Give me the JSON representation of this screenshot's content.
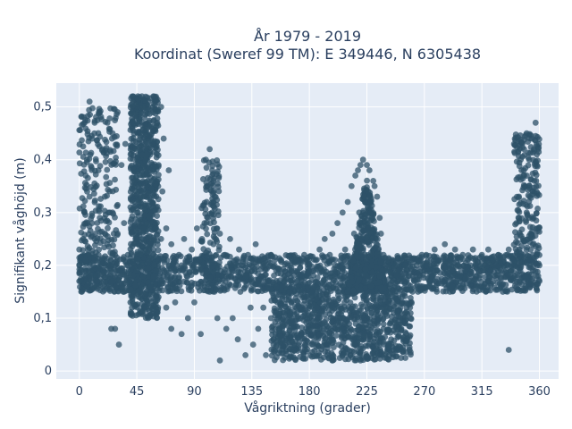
{
  "chart_data": {
    "type": "scatter",
    "title_line1": "År 1979 - 2019",
    "title_line2": "Koordinat (Sweref 99 TM): E 349446, N 6305438",
    "xlabel": "Vågriktning (grader)",
    "ylabel": "Signifikant våghöjd (m)",
    "xlim": [
      -18,
      375
    ],
    "ylim": [
      -0.015,
      0.545
    ],
    "xticks": [
      0,
      45,
      90,
      135,
      180,
      225,
      270,
      315,
      360
    ],
    "xtick_labels": [
      "0",
      "45",
      "90",
      "135",
      "180",
      "225",
      "270",
      "315",
      "360"
    ],
    "yticks": [
      0,
      0.1,
      0.2,
      0.3,
      0.4,
      0.5
    ],
    "ytick_labels": [
      "0",
      "0,1",
      "0,2",
      "0,3",
      "0,4",
      "0,5"
    ],
    "grid": true,
    "legend": "none",
    "marker_color": "#2e5168",
    "series": [
      {
        "points": [
          [
            0,
            0.17
          ],
          [
            0,
            0.2
          ],
          [
            0,
            0.23
          ],
          [
            2,
            0.15
          ],
          [
            2,
            0.19
          ],
          [
            3,
            0.25
          ],
          [
            4,
            0.18
          ],
          [
            4,
            0.3
          ],
          [
            5,
            0.21
          ],
          [
            5,
            0.37
          ],
          [
            6,
            0.16
          ],
          [
            6,
            0.4
          ],
          [
            7,
            0.22
          ],
          [
            8,
            0.33
          ],
          [
            8,
            0.51
          ],
          [
            9,
            0.18
          ],
          [
            10,
            0.28
          ],
          [
            10,
            0.44
          ],
          [
            11,
            0.2
          ],
          [
            12,
            0.25
          ],
          [
            12,
            0.47
          ],
          [
            14,
            0.17
          ],
          [
            15,
            0.22
          ],
          [
            15,
            0.38
          ],
          [
            16,
            0.29
          ],
          [
            18,
            0.21
          ],
          [
            18,
            0.42
          ],
          [
            20,
            0.16
          ],
          [
            20,
            0.33
          ],
          [
            22,
            0.24
          ],
          [
            22,
            0.47
          ],
          [
            24,
            0.18
          ],
          [
            25,
            0.08
          ],
          [
            26,
            0.3
          ],
          [
            26,
            0.45
          ],
          [
            28,
            0.2
          ],
          [
            28,
            0.08
          ],
          [
            30,
            0.26
          ],
          [
            30,
            0.49
          ],
          [
            31,
            0.05
          ],
          [
            32,
            0.19
          ],
          [
            33,
            0.39
          ],
          [
            35,
            0.15
          ],
          [
            35,
            0.28
          ],
          [
            36,
            0.43
          ],
          [
            38,
            0.2
          ],
          [
            38,
            0.22
          ],
          [
            40,
            0.31
          ],
          [
            40,
            0.13
          ],
          [
            41,
            0.47
          ],
          [
            42,
            0.18
          ],
          [
            42,
            0.52
          ],
          [
            43,
            0.36
          ],
          [
            44,
            0.25
          ],
          [
            44,
            0.42
          ],
          [
            45,
            0.19
          ],
          [
            45,
            0.5
          ],
          [
            46,
            0.3
          ],
          [
            46,
            0.15
          ],
          [
            47,
            0.45
          ],
          [
            48,
            0.22
          ],
          [
            48,
            0.38
          ],
          [
            49,
            0.52
          ],
          [
            50,
            0.27
          ],
          [
            50,
            0.18
          ],
          [
            51,
            0.48
          ],
          [
            52,
            0.33
          ],
          [
            52,
            0.12
          ],
          [
            53,
            0.41
          ],
          [
            54,
            0.21
          ],
          [
            54,
            0.5
          ],
          [
            55,
            0.29
          ],
          [
            56,
            0.44
          ],
          [
            56,
            0.16
          ],
          [
            57,
            0.36
          ],
          [
            58,
            0.52
          ],
          [
            58,
            0.23
          ],
          [
            60,
            0.31
          ],
          [
            60,
            0.19
          ],
          [
            61,
            0.47
          ],
          [
            62,
            0.39
          ],
          [
            62,
            0.14
          ],
          [
            64,
            0.25
          ],
          [
            64,
            0.5
          ],
          [
            65,
            0.34
          ],
          [
            66,
            0.18
          ],
          [
            66,
            0.44
          ],
          [
            68,
            0.27
          ],
          [
            68,
            0.12
          ],
          [
            70,
            0.38
          ],
          [
            70,
            0.2
          ],
          [
            72,
            0.24
          ],
          [
            72,
            0.08
          ],
          [
            74,
            0.21
          ],
          [
            75,
            0.13
          ],
          [
            76,
            0.17
          ],
          [
            78,
            0.22
          ],
          [
            80,
            0.2
          ],
          [
            80,
            0.07
          ],
          [
            82,
            0.25
          ],
          [
            84,
            0.18
          ],
          [
            85,
            0.1
          ],
          [
            86,
            0.21
          ],
          [
            88,
            0.23
          ],
          [
            90,
            0.19
          ],
          [
            90,
            0.13
          ],
          [
            92,
            0.27
          ],
          [
            94,
            0.21
          ],
          [
            95,
            0.07
          ],
          [
            96,
            0.25
          ],
          [
            98,
            0.28
          ],
          [
            99,
            0.4
          ],
          [
            100,
            0.19
          ],
          [
            100,
            0.35
          ],
          [
            102,
            0.42
          ],
          [
            102,
            0.15
          ],
          [
            104,
            0.3
          ],
          [
            104,
            0.38
          ],
          [
            105,
            0.24
          ],
          [
            106,
            0.33
          ],
          [
            108,
            0.2
          ],
          [
            108,
            0.1
          ],
          [
            110,
            0.26
          ],
          [
            110,
            0.02
          ],
          [
            112,
            0.18
          ],
          [
            114,
            0.22
          ],
          [
            115,
            0.08
          ],
          [
            116,
            0.16
          ],
          [
            118,
            0.25
          ],
          [
            120,
            0.19
          ],
          [
            120,
            0.1
          ],
          [
            122,
            0.21
          ],
          [
            124,
            0.06
          ],
          [
            125,
            0.23
          ],
          [
            126,
            0.15
          ],
          [
            128,
            0.2
          ],
          [
            130,
            0.03
          ],
          [
            130,
            0.18
          ],
          [
            132,
            0.22
          ],
          [
            134,
            0.12
          ],
          [
            135,
            0.19
          ],
          [
            136,
            0.05
          ],
          [
            138,
            0.24
          ],
          [
            140,
            0.17
          ],
          [
            140,
            0.08
          ],
          [
            142,
            0.21
          ],
          [
            144,
            0.12
          ],
          [
            145,
            0.2
          ],
          [
            146,
            0.03
          ],
          [
            148,
            0.17
          ],
          [
            150,
            0.22
          ],
          [
            150,
            0.1
          ],
          [
            152,
            0.06
          ],
          [
            154,
            0.19
          ],
          [
            155,
            0.13
          ],
          [
            156,
            0.08
          ],
          [
            158,
            0.21
          ],
          [
            160,
            0.11
          ],
          [
            160,
            0.17
          ],
          [
            162,
            0.06
          ],
          [
            164,
            0.14
          ],
          [
            165,
            0.2
          ],
          [
            166,
            0.09
          ],
          [
            168,
            0.04
          ],
          [
            170,
            0.16
          ],
          [
            170,
            0.21
          ],
          [
            172,
            0.12
          ],
          [
            174,
            0.07
          ],
          [
            175,
            0.18
          ],
          [
            176,
            0.22
          ],
          [
            178,
            0.14
          ],
          [
            180,
            0.1
          ],
          [
            180,
            0.19
          ],
          [
            182,
            0.05
          ],
          [
            184,
            0.16
          ],
          [
            185,
            0.21
          ],
          [
            186,
            0.12
          ],
          [
            188,
            0.23
          ],
          [
            190,
            0.09
          ],
          [
            190,
            0.19
          ],
          [
            192,
            0.25
          ],
          [
            194,
            0.15
          ],
          [
            195,
            0.05
          ],
          [
            196,
            0.22
          ],
          [
            198,
            0.26
          ],
          [
            200,
            0.12
          ],
          [
            200,
            0.2
          ],
          [
            202,
            0.28
          ],
          [
            204,
            0.18
          ],
          [
            205,
            0.08
          ],
          [
            206,
            0.3
          ],
          [
            208,
            0.23
          ],
          [
            210,
            0.32
          ],
          [
            210,
            0.15
          ],
          [
            212,
            0.03
          ],
          [
            213,
            0.35
          ],
          [
            214,
            0.21
          ],
          [
            215,
            0.26
          ],
          [
            216,
            0.37
          ],
          [
            217,
            0.11
          ],
          [
            218,
            0.38
          ],
          [
            219,
            0.3
          ],
          [
            220,
            0.39
          ],
          [
            220,
            0.02
          ],
          [
            221,
            0.22
          ],
          [
            222,
            0.4
          ],
          [
            223,
            0.33
          ],
          [
            224,
            0.18
          ],
          [
            225,
            0.39
          ],
          [
            226,
            0.27
          ],
          [
            226,
            0.06
          ],
          [
            227,
            0.38
          ],
          [
            228,
            0.32
          ],
          [
            229,
            0.2
          ],
          [
            230,
            0.36
          ],
          [
            230,
            0.12
          ],
          [
            231,
            0.35
          ],
          [
            232,
            0.25
          ],
          [
            233,
            0.33
          ],
          [
            234,
            0.03
          ],
          [
            235,
            0.29
          ],
          [
            235,
            0.18
          ],
          [
            236,
            0.26
          ],
          [
            238,
            0.22
          ],
          [
            238,
            0.08
          ],
          [
            240,
            0.19
          ],
          [
            240,
            0.14
          ],
          [
            242,
            0.2
          ],
          [
            244,
            0.06
          ],
          [
            245,
            0.17
          ],
          [
            246,
            0.11
          ],
          [
            248,
            0.2
          ],
          [
            250,
            0.04
          ],
          [
            250,
            0.19
          ],
          [
            252,
            0.08
          ],
          [
            254,
            0.17
          ],
          [
            255,
            0.2
          ],
          [
            256,
            0.12
          ],
          [
            258,
            0.18
          ],
          [
            260,
            0.21
          ],
          [
            262,
            0.17
          ],
          [
            264,
            0.2
          ],
          [
            265,
            0.15
          ],
          [
            266,
            0.18
          ],
          [
            268,
            0.22
          ],
          [
            270,
            0.19
          ],
          [
            272,
            0.2
          ],
          [
            274,
            0.16
          ],
          [
            275,
            0.21
          ],
          [
            276,
            0.18
          ],
          [
            278,
            0.23
          ],
          [
            280,
            0.19
          ],
          [
            282,
            0.21
          ],
          [
            284,
            0.17
          ],
          [
            285,
            0.2
          ],
          [
            286,
            0.24
          ],
          [
            288,
            0.18
          ],
          [
            290,
            0.21
          ],
          [
            290,
            0.15
          ],
          [
            292,
            0.19
          ],
          [
            294,
            0.23
          ],
          [
            295,
            0.17
          ],
          [
            296,
            0.2
          ],
          [
            298,
            0.18
          ],
          [
            300,
            0.22
          ],
          [
            300,
            0.16
          ],
          [
            302,
            0.19
          ],
          [
            304,
            0.21
          ],
          [
            305,
            0.17
          ],
          [
            306,
            0.2
          ],
          [
            308,
            0.23
          ],
          [
            310,
            0.18
          ],
          [
            310,
            0.21
          ],
          [
            312,
            0.19
          ],
          [
            314,
            0.16
          ],
          [
            315,
            0.22
          ],
          [
            316,
            0.19
          ],
          [
            318,
            0.2
          ],
          [
            320,
            0.17
          ],
          [
            320,
            0.23
          ],
          [
            322,
            0.19
          ],
          [
            324,
            0.21
          ],
          [
            325,
            0.18
          ],
          [
            326,
            0.2
          ],
          [
            328,
            0.22
          ],
          [
            330,
            0.19
          ],
          [
            330,
            0.16
          ],
          [
            332,
            0.21
          ],
          [
            334,
            0.18
          ],
          [
            335,
            0.2
          ],
          [
            336,
            0.04
          ],
          [
            336,
            0.23
          ],
          [
            338,
            0.19
          ],
          [
            340,
            0.21
          ],
          [
            340,
            0.17
          ],
          [
            342,
            0.28
          ],
          [
            343,
            0.2
          ],
          [
            344,
            0.33
          ],
          [
            345,
            0.19
          ],
          [
            346,
            0.38
          ],
          [
            347,
            0.22
          ],
          [
            348,
            0.42
          ],
          [
            349,
            0.18
          ],
          [
            350,
            0.3
          ],
          [
            350,
            0.45
          ],
          [
            351,
            0.21
          ],
          [
            352,
            0.4
          ],
          [
            353,
            0.26
          ],
          [
            354,
            0.44
          ],
          [
            355,
            0.19
          ],
          [
            356,
            0.36
          ],
          [
            357,
            0.47
          ],
          [
            358,
            0.22
          ],
          [
            358,
            0.41
          ],
          [
            359,
            0.18
          ],
          [
            360,
            0.2
          ],
          [
            360,
            0.17
          ]
        ]
      }
    ]
  }
}
